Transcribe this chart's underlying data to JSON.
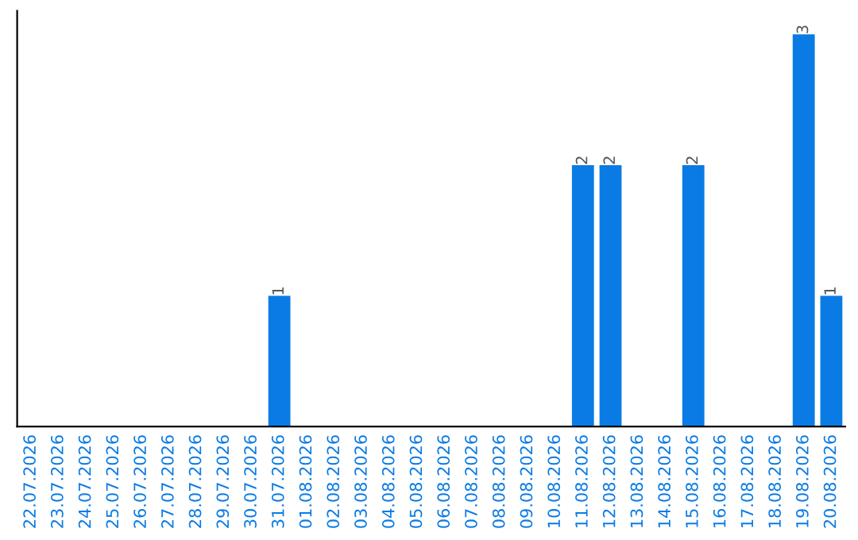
{
  "chart_data": {
    "type": "bar",
    "categories": [
      "22.07.2026",
      "23.07.2026",
      "24.07.2026",
      "25.07.2026",
      "26.07.2026",
      "27.07.2026",
      "28.07.2026",
      "29.07.2026",
      "30.07.2026",
      "31.07.2026",
      "01.08.2026",
      "02.08.2026",
      "03.08.2026",
      "04.08.2026",
      "05.08.2026",
      "06.08.2026",
      "07.08.2026",
      "08.08.2026",
      "09.08.2026",
      "10.08.2026",
      "11.08.2026",
      "12.08.2026",
      "13.08.2026",
      "14.08.2026",
      "15.08.2026",
      "16.08.2026",
      "17.08.2026",
      "18.08.2026",
      "19.08.2026",
      "20.08.2026"
    ],
    "values": [
      0,
      0,
      0,
      0,
      0,
      0,
      0,
      0,
      0,
      1,
      0,
      0,
      0,
      0,
      0,
      0,
      0,
      0,
      0,
      0,
      2,
      2,
      0,
      0,
      2,
      0,
      0,
      0,
      3,
      1
    ],
    "color": "#0a7be4",
    "value_labels": [
      null,
      null,
      null,
      null,
      null,
      null,
      null,
      null,
      null,
      "1",
      null,
      null,
      null,
      null,
      null,
      null,
      null,
      null,
      null,
      null,
      "2",
      "2",
      null,
      null,
      "2",
      null,
      null,
      null,
      "3",
      "1"
    ],
    "tick_labels": "x",
    "grid": false,
    "legend": false
  }
}
